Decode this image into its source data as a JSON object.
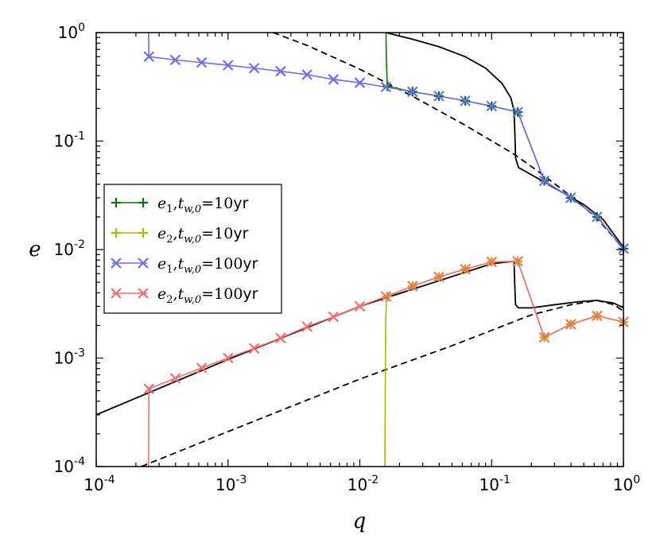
{
  "chart_data": {
    "type": "line",
    "xscale": "log",
    "yscale": "log",
    "xlabel": "q",
    "ylabel": "e",
    "xlim": [
      0.0001,
      1
    ],
    "ylim": [
      0.0001,
      1
    ],
    "xticks": [
      {
        "base": "10",
        "exp": "-4",
        "value": 0.0001
      },
      {
        "base": "10",
        "exp": "-3",
        "value": 0.001
      },
      {
        "base": "10",
        "exp": "-2",
        "value": 0.01
      },
      {
        "base": "10",
        "exp": "-1",
        "value": 0.1
      },
      {
        "base": "10",
        "exp": "0",
        "value": 1
      }
    ],
    "yticks": [
      {
        "base": "10",
        "exp": "-4",
        "value": 0.0001
      },
      {
        "base": "10",
        "exp": "-3",
        "value": 0.001
      },
      {
        "base": "10",
        "exp": "-2",
        "value": 0.01
      },
      {
        "base": "10",
        "exp": "-1",
        "value": 0.1
      },
      {
        "base": "10",
        "exp": "0",
        "value": 1
      }
    ],
    "legend_position": "center-left",
    "series": [
      {
        "name": "e1, tw0 = 10yr",
        "legend": {
          "sym": "e",
          "sub": "1",
          "tsym": "t",
          "tsub": "w,0",
          "eq": "=10",
          "unit": "yr"
        },
        "color": "#007a00",
        "marker": "plus",
        "x": [
          0.0158,
          0.0159,
          0.0162,
          0.0251,
          0.0398,
          0.0631,
          0.1,
          0.158,
          0.251,
          0.398,
          0.631,
          1.0
        ],
        "y": [
          1.0,
          0.55,
          0.32,
          0.285,
          0.26,
          0.235,
          0.21,
          0.185,
          0.043,
          0.03,
          0.02,
          0.0102
        ],
        "marker_x": [
          0.0162,
          0.0251,
          0.0398,
          0.0631,
          0.1,
          0.158,
          0.251,
          0.398,
          0.631,
          1.0
        ],
        "marker_y": [
          0.32,
          0.285,
          0.26,
          0.235,
          0.21,
          0.185,
          0.043,
          0.03,
          0.02,
          0.0102
        ]
      },
      {
        "name": "e2, tw0 = 10yr",
        "legend": {
          "sym": "e",
          "sub": "2",
          "tsym": "t",
          "tsub": "w,0",
          "eq": "=10",
          "unit": "yr"
        },
        "color": "#b3b300",
        "marker": "plus",
        "x": [
          0.0155,
          0.0157,
          0.0159,
          0.0162,
          0.0251,
          0.0398,
          0.0631,
          0.1,
          0.158,
          0.251,
          0.398,
          0.631,
          1.0
        ],
        "y": [
          0.0001,
          0.002,
          0.0034,
          0.0037,
          0.0046,
          0.0056,
          0.0066,
          0.0077,
          0.0078,
          0.00155,
          0.00205,
          0.00245,
          0.00215
        ],
        "marker_x": [
          0.0162,
          0.0251,
          0.0398,
          0.0631,
          0.1,
          0.158,
          0.251,
          0.398,
          0.631,
          1.0
        ],
        "marker_y": [
          0.0037,
          0.0046,
          0.0056,
          0.0066,
          0.0077,
          0.0078,
          0.00155,
          0.00205,
          0.00245,
          0.00215
        ]
      },
      {
        "name": "e1, tw0 = 100yr",
        "legend": {
          "sym": "e",
          "sub": "1",
          "tsym": "t",
          "tsub": "w,0",
          "eq": "=100",
          "unit": "yr"
        },
        "color": "#6c6cf5",
        "marker": "x",
        "x": [
          0.00025,
          0.000251,
          0.000398,
          0.000631,
          0.001,
          0.00158,
          0.00251,
          0.00398,
          0.00631,
          0.01,
          0.0158,
          0.0251,
          0.0398,
          0.0631,
          0.1,
          0.158,
          0.251,
          0.398,
          0.631,
          1.0
        ],
        "y": [
          1.0,
          0.6,
          0.56,
          0.53,
          0.5,
          0.47,
          0.44,
          0.41,
          0.37,
          0.345,
          0.315,
          0.285,
          0.26,
          0.235,
          0.21,
          0.185,
          0.043,
          0.03,
          0.02,
          0.0102
        ],
        "marker_x": [
          0.000251,
          0.000398,
          0.000631,
          0.001,
          0.00158,
          0.00251,
          0.00398,
          0.00631,
          0.01,
          0.0158,
          0.0251,
          0.0398,
          0.0631,
          0.1,
          0.158,
          0.251,
          0.398,
          0.631,
          1.0
        ],
        "marker_y": [
          0.6,
          0.56,
          0.53,
          0.5,
          0.47,
          0.44,
          0.41,
          0.37,
          0.345,
          0.315,
          0.285,
          0.26,
          0.235,
          0.21,
          0.185,
          0.043,
          0.03,
          0.02,
          0.0102
        ]
      },
      {
        "name": "e2, tw0 = 100yr",
        "legend": {
          "sym": "e",
          "sub": "2",
          "tsym": "t",
          "tsub": "w,0",
          "eq": "=100",
          "unit": "yr"
        },
        "color": "#f56c6c",
        "marker": "x",
        "x": [
          0.00025,
          0.000251,
          0.000398,
          0.000631,
          0.001,
          0.00158,
          0.00251,
          0.00398,
          0.00631,
          0.01,
          0.0158,
          0.0251,
          0.0398,
          0.0631,
          0.1,
          0.158,
          0.251,
          0.398,
          0.631,
          1.0
        ],
        "y": [
          0.0001,
          0.00052,
          0.00065,
          0.00081,
          0.001,
          0.00123,
          0.00153,
          0.00195,
          0.0024,
          0.003,
          0.0037,
          0.0046,
          0.0056,
          0.0066,
          0.0077,
          0.0078,
          0.00155,
          0.00205,
          0.00245,
          0.00215
        ],
        "marker_x": [
          0.000251,
          0.000398,
          0.000631,
          0.001,
          0.00158,
          0.00251,
          0.00398,
          0.00631,
          0.01,
          0.0158,
          0.0251,
          0.0398,
          0.0631,
          0.1,
          0.158,
          0.251,
          0.398,
          0.631,
          1.0
        ],
        "marker_y": [
          0.00052,
          0.00065,
          0.00081,
          0.001,
          0.00123,
          0.00153,
          0.00195,
          0.0024,
          0.003,
          0.0037,
          0.0046,
          0.0056,
          0.0066,
          0.0077,
          0.0078,
          0.00155,
          0.00205,
          0.00245,
          0.00215
        ]
      }
    ],
    "reference_curves": [
      {
        "name": "solid-upper",
        "style": "solid",
        "color": "#000000",
        "x": [
          0.0158,
          0.025,
          0.04,
          0.063,
          0.09,
          0.12,
          0.14,
          0.148,
          0.15,
          0.152,
          0.16,
          0.2,
          0.3,
          0.5,
          0.7,
          1.0
        ],
        "y": [
          1.0,
          0.87,
          0.74,
          0.6,
          0.47,
          0.34,
          0.25,
          0.19,
          0.12,
          0.07,
          0.057,
          0.049,
          0.037,
          0.026,
          0.019,
          0.0105
        ]
      },
      {
        "name": "dashed-upper",
        "style": "dashed",
        "color": "#000000",
        "x": [
          0.0022,
          0.004,
          0.01,
          0.025,
          0.063,
          0.15,
          0.25,
          0.4,
          0.63,
          1.0
        ],
        "y": [
          1.0,
          0.76,
          0.46,
          0.26,
          0.14,
          0.075,
          0.048,
          0.031,
          0.0195,
          0.0102
        ]
      },
      {
        "name": "solid-lower",
        "style": "solid",
        "color": "#000000",
        "x": [
          0.0001,
          0.001,
          0.01,
          0.1,
          0.148,
          0.15,
          0.152,
          0.16,
          0.2,
          0.3,
          0.45,
          0.63,
          0.85,
          1.0
        ],
        "y": [
          0.0003,
          0.00097,
          0.003,
          0.0074,
          0.0078,
          0.0045,
          0.0031,
          0.0029,
          0.0029,
          0.0031,
          0.0033,
          0.0034,
          0.0032,
          0.0029
        ]
      },
      {
        "name": "dashed-lower",
        "style": "dashed",
        "color": "#000000",
        "x": [
          0.00022,
          0.001,
          0.01,
          0.05,
          0.1,
          0.2,
          0.4,
          0.63,
          0.85,
          1.0
        ],
        "y": [
          0.0001,
          0.00021,
          0.00064,
          0.0013,
          0.0018,
          0.0025,
          0.0031,
          0.0034,
          0.0031,
          0.0027
        ]
      }
    ]
  }
}
